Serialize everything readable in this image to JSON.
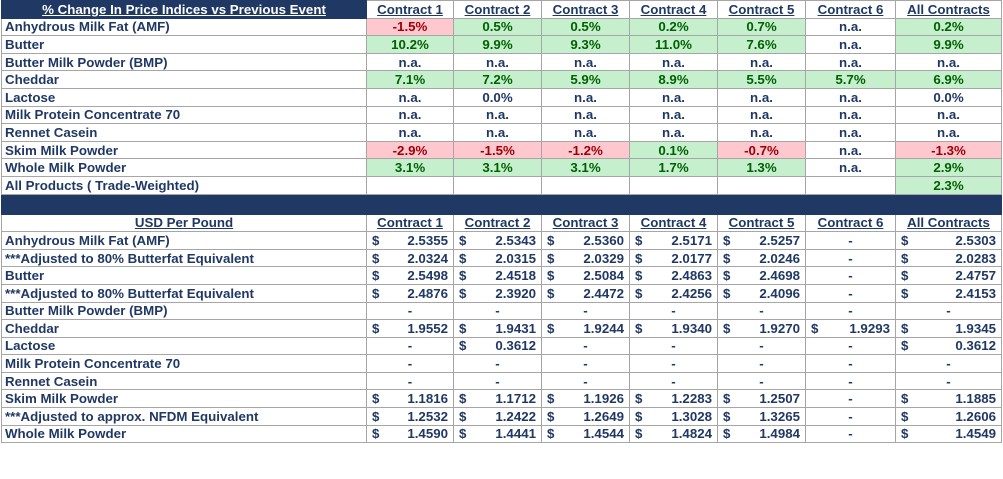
{
  "contracts": [
    "Contract 1",
    "Contract 2",
    "Contract 3",
    "Contract 4",
    "Contract 5",
    "Contract 6",
    "All Contracts"
  ],
  "pct_section": {
    "title": "% Change In Price Indices vs Previous Event",
    "rows": [
      {
        "label": "Anhydrous Milk Fat (AMF)",
        "values": [
          "-1.5%",
          "0.5%",
          "0.5%",
          "0.2%",
          "0.7%",
          "n.a.",
          "0.2%"
        ],
        "status": [
          "neg",
          "pos",
          "pos",
          "pos",
          "pos",
          "na",
          "pos"
        ]
      },
      {
        "label": "Butter",
        "values": [
          "10.2%",
          "9.9%",
          "9.3%",
          "11.0%",
          "7.6%",
          "n.a.",
          "9.9%"
        ],
        "status": [
          "pos",
          "pos",
          "pos",
          "pos",
          "pos",
          "na",
          "pos"
        ]
      },
      {
        "label": "Butter Milk Powder (BMP)",
        "values": [
          "n.a.",
          "n.a.",
          "n.a.",
          "n.a.",
          "n.a.",
          "n.a.",
          "n.a."
        ],
        "status": [
          "na",
          "na",
          "na",
          "na",
          "na",
          "na",
          "na"
        ]
      },
      {
        "label": "Cheddar",
        "values": [
          "7.1%",
          "7.2%",
          "5.9%",
          "8.9%",
          "5.5%",
          "5.7%",
          "6.9%"
        ],
        "status": [
          "pos",
          "pos",
          "pos",
          "pos",
          "pos",
          "pos",
          "pos"
        ]
      },
      {
        "label": "Lactose",
        "values": [
          "n.a.",
          "0.0%",
          "n.a.",
          "n.a.",
          "n.a.",
          "n.a.",
          "0.0%"
        ],
        "status": [
          "na",
          "na",
          "na",
          "na",
          "na",
          "na",
          "na"
        ]
      },
      {
        "label": "Milk Protein Concentrate 70",
        "values": [
          "n.a.",
          "n.a.",
          "n.a.",
          "n.a.",
          "n.a.",
          "n.a.",
          "n.a."
        ],
        "status": [
          "na",
          "na",
          "na",
          "na",
          "na",
          "na",
          "na"
        ]
      },
      {
        "label": "Rennet Casein",
        "values": [
          "n.a.",
          "n.a.",
          "n.a.",
          "n.a.",
          "n.a.",
          "n.a.",
          "n.a."
        ],
        "status": [
          "na",
          "na",
          "na",
          "na",
          "na",
          "na",
          "na"
        ]
      },
      {
        "label": "Skim Milk Powder",
        "values": [
          "-2.9%",
          "-1.5%",
          "-1.2%",
          "0.1%",
          "-0.7%",
          "n.a.",
          "-1.3%"
        ],
        "status": [
          "neg",
          "neg",
          "neg",
          "pos",
          "neg",
          "na",
          "neg"
        ]
      },
      {
        "label": "Whole Milk Powder",
        "values": [
          "3.1%",
          "3.1%",
          "3.1%",
          "1.7%",
          "1.3%",
          "n.a.",
          "2.9%"
        ],
        "status": [
          "pos",
          "pos",
          "pos",
          "pos",
          "pos",
          "na",
          "pos"
        ]
      },
      {
        "label": "All Products ( Trade-Weighted)",
        "values": [
          "",
          "",
          "",
          "",
          "",
          "",
          "2.3%"
        ],
        "status": [
          "blank",
          "blank",
          "blank",
          "blank",
          "blank",
          "blank",
          "pos"
        ]
      }
    ]
  },
  "usd_section": {
    "title": "USD Per Pound",
    "currency_symbol": "$",
    "rows": [
      {
        "label": "Anhydrous Milk Fat (AMF)",
        "values": [
          "2.5355",
          "2.5343",
          "2.5360",
          "2.5171",
          "2.5257",
          "-",
          "2.5303"
        ]
      },
      {
        "label": "***Adjusted to 80% Butterfat Equivalent",
        "values": [
          "2.0324",
          "2.0315",
          "2.0329",
          "2.0177",
          "2.0246",
          "-",
          "2.0283"
        ]
      },
      {
        "label": "Butter",
        "values": [
          "2.5498",
          "2.4518",
          "2.5084",
          "2.4863",
          "2.4698",
          "-",
          "2.4757"
        ]
      },
      {
        "label": "***Adjusted to 80% Butterfat Equivalent",
        "values": [
          "2.4876",
          "2.3920",
          "2.4472",
          "2.4256",
          "2.4096",
          "-",
          "2.4153"
        ]
      },
      {
        "label": "Butter Milk Powder (BMP)",
        "values": [
          "-",
          "-",
          "-",
          "-",
          "-",
          "-",
          "-"
        ]
      },
      {
        "label": "Cheddar",
        "values": [
          "1.9552",
          "1.9431",
          "1.9244",
          "1.9340",
          "1.9270",
          "1.9293",
          "1.9345"
        ]
      },
      {
        "label": "Lactose",
        "values": [
          "-",
          "0.3612",
          "-",
          "-",
          "-",
          "-",
          "0.3612"
        ]
      },
      {
        "label": "Milk Protein Concentrate 70",
        "values": [
          "-",
          "-",
          "-",
          "-",
          "-",
          "-",
          "-"
        ]
      },
      {
        "label": "Rennet Casein",
        "values": [
          "-",
          "-",
          "-",
          "-",
          "-",
          "-",
          "-"
        ]
      },
      {
        "label": "Skim Milk Powder",
        "values": [
          "1.1816",
          "1.1712",
          "1.1926",
          "1.2283",
          "1.2507",
          "-",
          "1.1885"
        ]
      },
      {
        "label": "***Adjusted to approx. NFDM Equivalent",
        "values": [
          "1.2532",
          "1.2422",
          "1.2649",
          "1.3028",
          "1.3265",
          "-",
          "1.2606"
        ]
      },
      {
        "label": "Whole Milk Powder",
        "values": [
          "1.4590",
          "1.4441",
          "1.4544",
          "1.4824",
          "1.4984",
          "-",
          "1.4549"
        ]
      }
    ]
  },
  "colors": {
    "navy": "#1f3864",
    "positive_fill": "#c6efce",
    "positive_text": "#006100",
    "negative_fill": "#ffc7ce",
    "negative_text": "#9c0006"
  }
}
